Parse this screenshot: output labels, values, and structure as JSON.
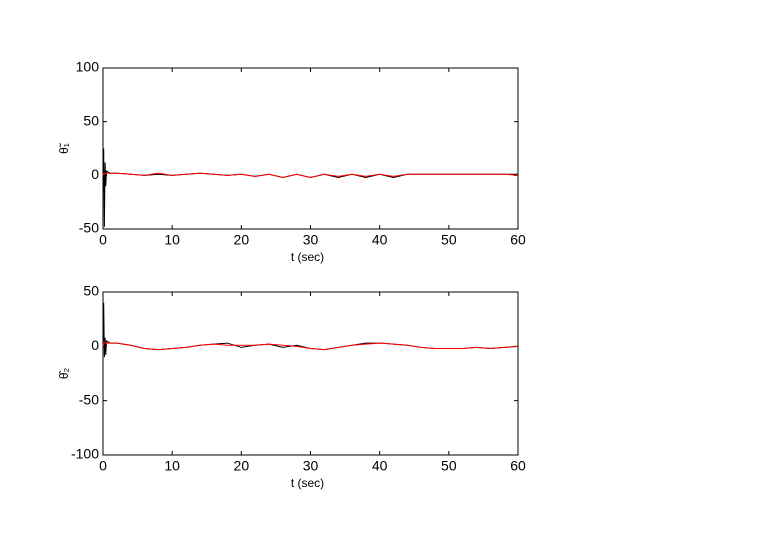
{
  "chart_data": [
    {
      "type": "line",
      "xlabel": "t (sec)",
      "ylabel": "θ̃₁",
      "x": [
        0,
        0.1,
        0.2,
        0.3,
        0.4,
        0.5,
        1,
        2,
        4,
        6,
        8,
        10,
        12,
        14,
        16,
        18,
        20,
        22,
        24,
        26,
        28,
        30,
        32,
        34,
        36,
        38,
        40,
        42,
        44,
        46,
        48,
        50,
        52,
        54,
        56,
        58,
        60
      ],
      "series": [
        {
          "color": "#000000",
          "values": [
            0,
            25,
            -48,
            12,
            -10,
            4,
            2,
            2,
            1,
            0,
            1,
            0,
            1,
            2,
            1,
            0,
            1,
            -1,
            1,
            -2,
            1,
            -2,
            1,
            -2,
            1,
            -2,
            1,
            -2,
            1,
            1,
            1,
            1,
            1,
            1,
            1,
            1,
            1
          ]
        },
        {
          "color": "#ff0000",
          "values": [
            0,
            2,
            1,
            2,
            2,
            2,
            2,
            2,
            1,
            0,
            2,
            0,
            1,
            2,
            1,
            0,
            1,
            -1,
            1,
            -2,
            1,
            -2,
            1,
            -1,
            1,
            -1,
            1,
            -1,
            1,
            1,
            1,
            1,
            1,
            1,
            1,
            1,
            0
          ]
        }
      ],
      "xlim": [
        0,
        60
      ],
      "xticks": [
        0,
        10,
        20,
        30,
        40,
        50,
        60
      ],
      "ylim": [
        -50,
        100
      ],
      "yticks": [
        -50,
        0,
        50,
        100
      ]
    },
    {
      "type": "line",
      "xlabel": "t (sec)",
      "ylabel": "θ̂₂",
      "x": [
        0,
        0.1,
        0.2,
        0.3,
        0.4,
        0.5,
        1,
        2,
        4,
        6,
        8,
        10,
        12,
        14,
        16,
        18,
        20,
        22,
        24,
        26,
        28,
        30,
        32,
        34,
        36,
        38,
        40,
        42,
        44,
        46,
        48,
        50,
        52,
        54,
        56,
        58,
        60
      ],
      "series": [
        {
          "color": "#000000",
          "values": [
            0,
            40,
            -10,
            8,
            -8,
            5,
            3,
            3,
            1,
            -2,
            -3,
            -2,
            -1,
            1,
            2,
            3,
            -1,
            1,
            2,
            -1,
            1,
            -2,
            -3,
            -1,
            1,
            3,
            3,
            2,
            1,
            -1,
            -2,
            -2,
            -2,
            -1,
            -2,
            -1,
            0
          ]
        },
        {
          "color": "#ff0000",
          "values": [
            0,
            3,
            3,
            4,
            3,
            3,
            3,
            3,
            1,
            -2,
            -3,
            -2,
            -1,
            1,
            2,
            1,
            1,
            1,
            2,
            1,
            0,
            -2,
            -3,
            -1,
            1,
            2,
            3,
            2,
            1,
            -1,
            -2,
            -2,
            -2,
            -1,
            -2,
            -1,
            0
          ]
        }
      ],
      "xlim": [
        0,
        60
      ],
      "xticks": [
        0,
        10,
        20,
        30,
        40,
        50,
        60
      ],
      "ylim": [
        -100,
        50
      ],
      "yticks": [
        -100,
        -50,
        0,
        50
      ]
    }
  ]
}
